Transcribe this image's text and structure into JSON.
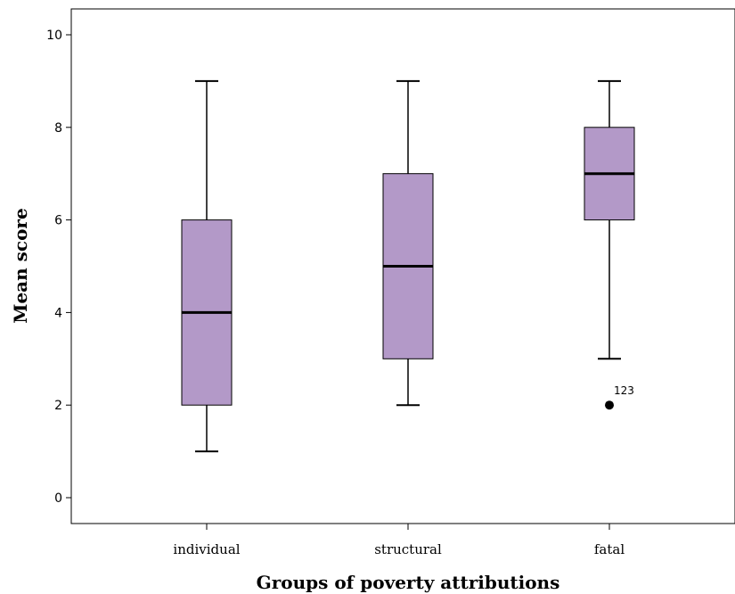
{
  "chart_data": {
    "type": "boxplot",
    "title": "",
    "xlabel": "Groups of poverty attributions",
    "ylabel": "Mean score",
    "ylim": [
      -0.5,
      10.5
    ],
    "yticks": [
      "0",
      "2",
      "4",
      "6",
      "8",
      "10"
    ],
    "grid": false,
    "box_color": "#b399c8",
    "categories": [
      "individual",
      "structural",
      "fatal"
    ],
    "boxes": [
      {
        "category": "individual",
        "whisker_low": 1,
        "q1": 2,
        "median": 4,
        "q3": 6,
        "whisker_high": 9,
        "outliers": []
      },
      {
        "category": "structural",
        "whisker_low": 2,
        "q1": 3,
        "median": 5,
        "q3": 7,
        "whisker_high": 9,
        "outliers": []
      },
      {
        "category": "fatal",
        "whisker_low": 3,
        "q1": 6,
        "median": 7,
        "q3": 8,
        "whisker_high": 9,
        "outliers": [
          {
            "value": 2,
            "label": "123"
          }
        ]
      }
    ]
  }
}
